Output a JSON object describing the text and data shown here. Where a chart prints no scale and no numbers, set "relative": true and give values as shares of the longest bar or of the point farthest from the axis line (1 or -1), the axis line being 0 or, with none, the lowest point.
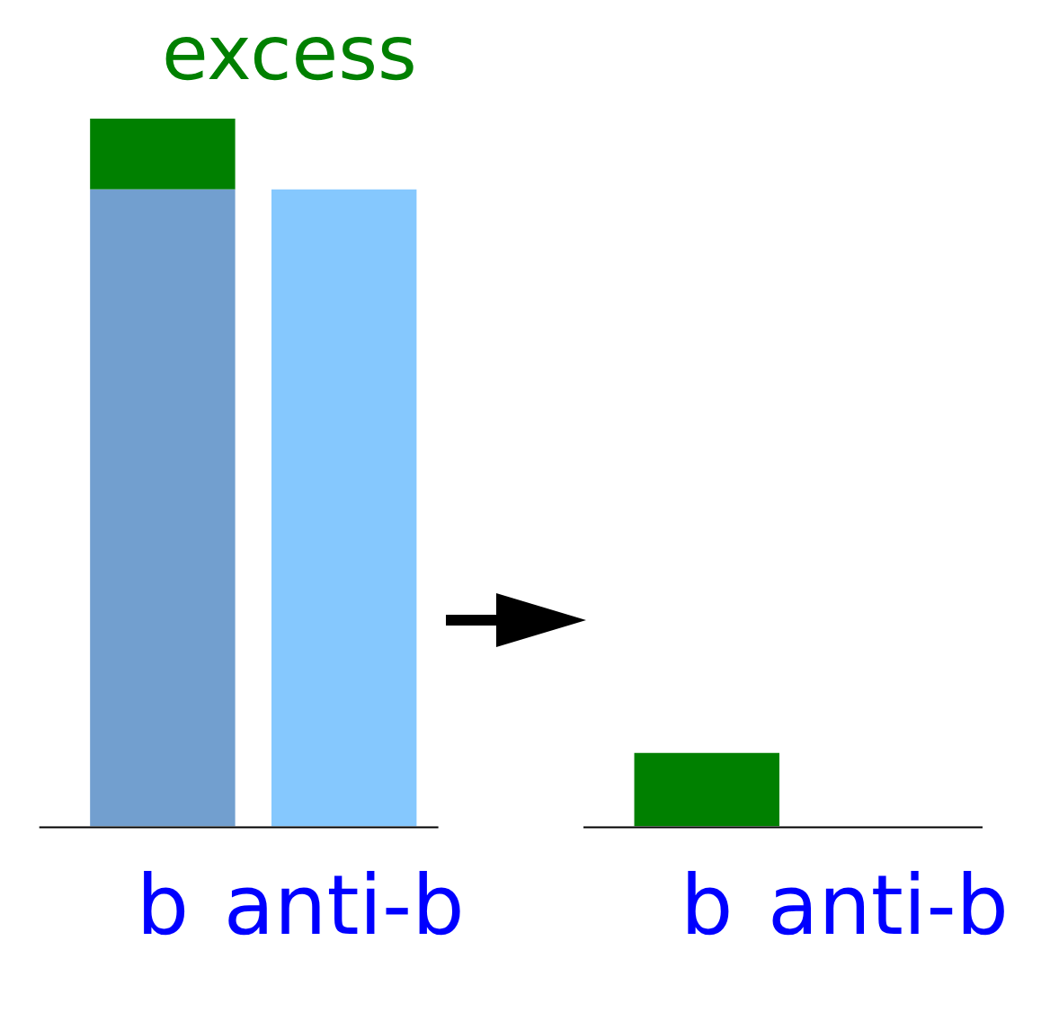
{
  "chart_data": {
    "type": "bar",
    "relative": true,
    "stacked": true,
    "categories": [
      "b",
      "anti-b",
      null,
      "b",
      "anti-b"
    ],
    "series": [
      {
        "color": "#729fcf",
        "colors": [
          "#729fcf",
          "#85c8fe",
          null,
          null,
          null
        ],
        "values": [
          0.9,
          0.9,
          null,
          null,
          null
        ]
      },
      {
        "color": "#008000",
        "values": [
          0.1,
          null,
          null,
          0.104,
          null
        ]
      }
    ],
    "annotations": [
      "excess"
    ],
    "grid": false,
    "legend": false
  }
}
